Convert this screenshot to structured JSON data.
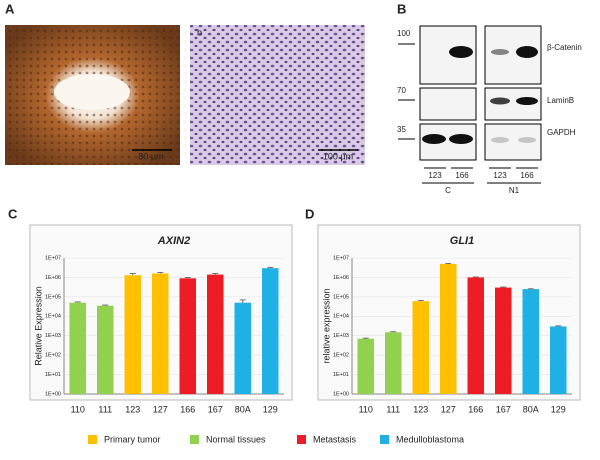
{
  "panels": {
    "a": "A",
    "b": "B",
    "c": "C",
    "d": "D"
  },
  "histology": {
    "scale_left": "80 µm",
    "label_right": "b",
    "scale_right": "100 µm"
  },
  "blot": {
    "markers": [
      "100",
      "70",
      "35"
    ],
    "proteins": [
      "β-Catenin",
      "LaminB",
      "GAPDH"
    ],
    "lanes": [
      "123",
      "166",
      "123",
      "166"
    ],
    "groups": [
      "C",
      "N1"
    ]
  },
  "legend": [
    {
      "name": "Primary tumor",
      "color": "#ffc000"
    },
    {
      "name": "Normal tissues",
      "color": "#92d050"
    },
    {
      "name": "Metastasis",
      "color": "#ee1c25"
    },
    {
      "name": "Medulloblastoma",
      "color": "#1fb0e4"
    }
  ],
  "chart_data": [
    {
      "type": "bar",
      "title": "AXIN2",
      "ylabel": "Relative Expression",
      "categories": [
        "110",
        "111",
        "123",
        "127",
        "166",
        "167",
        "80A",
        "129"
      ],
      "values": [
        50000,
        35000,
        1300000,
        1600000,
        900000,
        1400000,
        50000,
        3000000
      ],
      "errors": [
        5000,
        3000,
        300000,
        200000,
        100000,
        200000,
        20000,
        300000
      ],
      "colors": [
        "#92d050",
        "#92d050",
        "#ffc000",
        "#ffc000",
        "#ee1c25",
        "#ee1c25",
        "#1fb0e4",
        "#1fb0e4"
      ],
      "ylim": [
        1,
        10000000
      ],
      "log_scale": true,
      "grid": true,
      "yticks": [
        {
          "value": 1,
          "label": "1E+00"
        },
        {
          "value": 10,
          "label": "1E+01"
        },
        {
          "value": 100,
          "label": "1E+02"
        },
        {
          "value": 1000,
          "label": "1E+03"
        },
        {
          "value": 10000,
          "label": "1E+04"
        },
        {
          "value": 100000,
          "label": "1E+05"
        },
        {
          "value": 1000000,
          "label": "1E+06"
        },
        {
          "value": 10000000,
          "label": "1E+07"
        }
      ]
    },
    {
      "type": "bar",
      "title": "GLI1",
      "ylabel": "relative expression",
      "categories": [
        "110",
        "111",
        "123",
        "127",
        "166",
        "167",
        "80A",
        "129"
      ],
      "values": [
        700,
        1500,
        60000,
        5000000,
        1000000,
        300000,
        250000,
        3000
      ],
      "errors": [
        50,
        100,
        5000,
        300000,
        50000,
        20000,
        10000,
        200
      ],
      "colors": [
        "#92d050",
        "#92d050",
        "#ffc000",
        "#ffc000",
        "#ee1c25",
        "#ee1c25",
        "#1fb0e4",
        "#1fb0e4"
      ],
      "ylim": [
        1,
        10000000
      ],
      "log_scale": true,
      "grid": true,
      "yticks": [
        {
          "value": 1,
          "label": "1E+00"
        },
        {
          "value": 10,
          "label": "1E+01"
        },
        {
          "value": 100,
          "label": "1E+02"
        },
        {
          "value": 1000,
          "label": "1E+03"
        },
        {
          "value": 10000,
          "label": "1E+04"
        },
        {
          "value": 100000,
          "label": "1E+05"
        },
        {
          "value": 1000000,
          "label": "1E+06"
        },
        {
          "value": 10000000,
          "label": "1E+07"
        }
      ]
    }
  ]
}
